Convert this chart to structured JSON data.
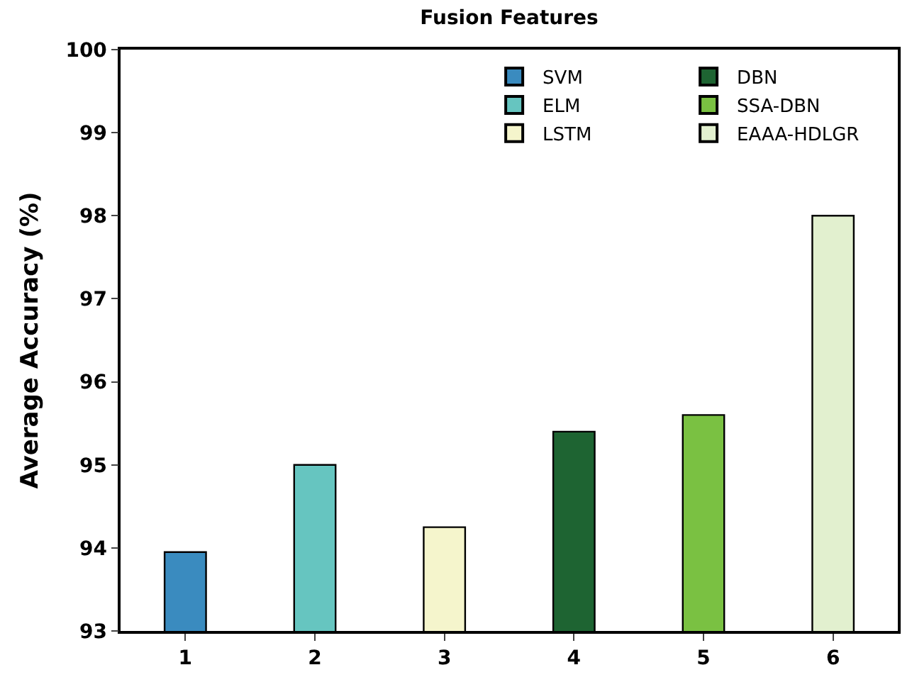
{
  "chart_data": {
    "type": "bar",
    "title": "Fusion Features",
    "ylabel": "Average Accuracy (%)",
    "categories": [
      "1",
      "2",
      "3",
      "4",
      "5",
      "6"
    ],
    "series": [
      {
        "name": "SVM",
        "color": "#3a8bbf",
        "values": [
          93.95,
          null,
          null,
          null,
          null,
          null
        ]
      },
      {
        "name": "ELM",
        "color": "#66c5c0",
        "values": [
          null,
          95.0,
          null,
          null,
          null,
          null
        ]
      },
      {
        "name": "LSTM",
        "color": "#f5f5cc",
        "values": [
          null,
          null,
          94.25,
          null,
          null,
          null
        ]
      },
      {
        "name": "DBN",
        "color": "#1e6432",
        "values": [
          null,
          null,
          null,
          95.4,
          null,
          null
        ]
      },
      {
        "name": "SSA-DBN",
        "color": "#7ac142",
        "values": [
          null,
          null,
          null,
          null,
          95.6,
          null
        ]
      },
      {
        "name": "EAAA-HDLGR",
        "color": "#e2f0cf",
        "values": [
          null,
          null,
          null,
          null,
          null,
          98.0
        ]
      }
    ],
    "ylim": [
      93,
      100
    ],
    "yticks": [
      93,
      94,
      95,
      96,
      97,
      98,
      99,
      100
    ],
    "legend": "top right"
  }
}
